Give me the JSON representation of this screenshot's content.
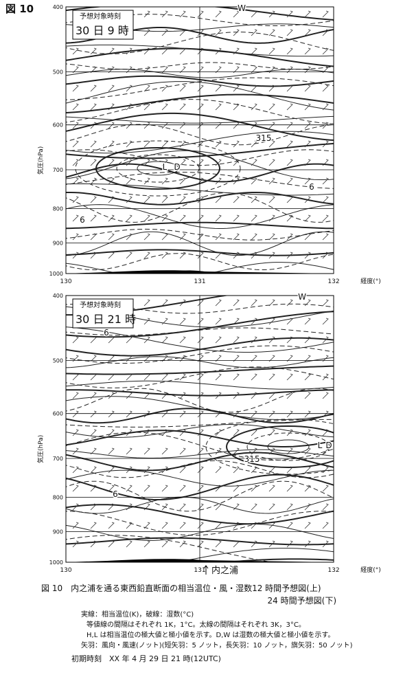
{
  "figure_label": "図 10",
  "panels": [
    {
      "forecast_label": "予想対象時刻",
      "forecast_time": "30 日 9 時",
      "y_axis_label": "気圧(hPa)",
      "x_axis_label": "経度(°)",
      "y_scale": "log",
      "ylim": [
        400,
        1000
      ],
      "yticks": [
        400,
        500,
        600,
        700,
        800,
        900,
        1000
      ],
      "xlim": [
        130,
        132
      ],
      "xticks": [
        130,
        131,
        132
      ],
      "annotations": [
        "W",
        "315",
        "L",
        "D",
        "6",
        "6"
      ]
    },
    {
      "forecast_label": "予想対象時刻",
      "forecast_time": "30 日 21 時",
      "y_axis_label": "気圧(hPa)",
      "x_axis_label": "経度(°)",
      "y_scale": "log",
      "ylim": [
        400,
        1000
      ],
      "yticks": [
        400,
        500,
        600,
        700,
        800,
        900,
        1000
      ],
      "xlim": [
        130,
        132
      ],
      "xticks": [
        130,
        131,
        132
      ],
      "annotations": [
        "W",
        "6",
        "315",
        "L",
        "D",
        "6"
      ],
      "station_label": "内之浦"
    }
  ],
  "caption": {
    "title": "図 10　内之浦を通る東西鉛直断面の相当温位・風・湿数12 時間予想図(上)",
    "title_cont": "24 時間予想図(下)",
    "notes": [
      "実線：相当温位(K)，破線：湿数(°C)",
      "等値線の間隔はそれぞれ 1K，1°C。太線の間隔はそれぞれ 3K，3°C。",
      "H,L は相当温位の極大値と極小値を示す。D,W は湿数の極大値と極小値を示す。",
      "矢羽：風向・風速(ノット)(短矢羽：5 ノット，長矢羽：10 ノット，旗矢羽：50 ノット)"
    ],
    "init_time": "初期時刻　XX 年 4 月 29 日 21 時(12UTC)"
  }
}
